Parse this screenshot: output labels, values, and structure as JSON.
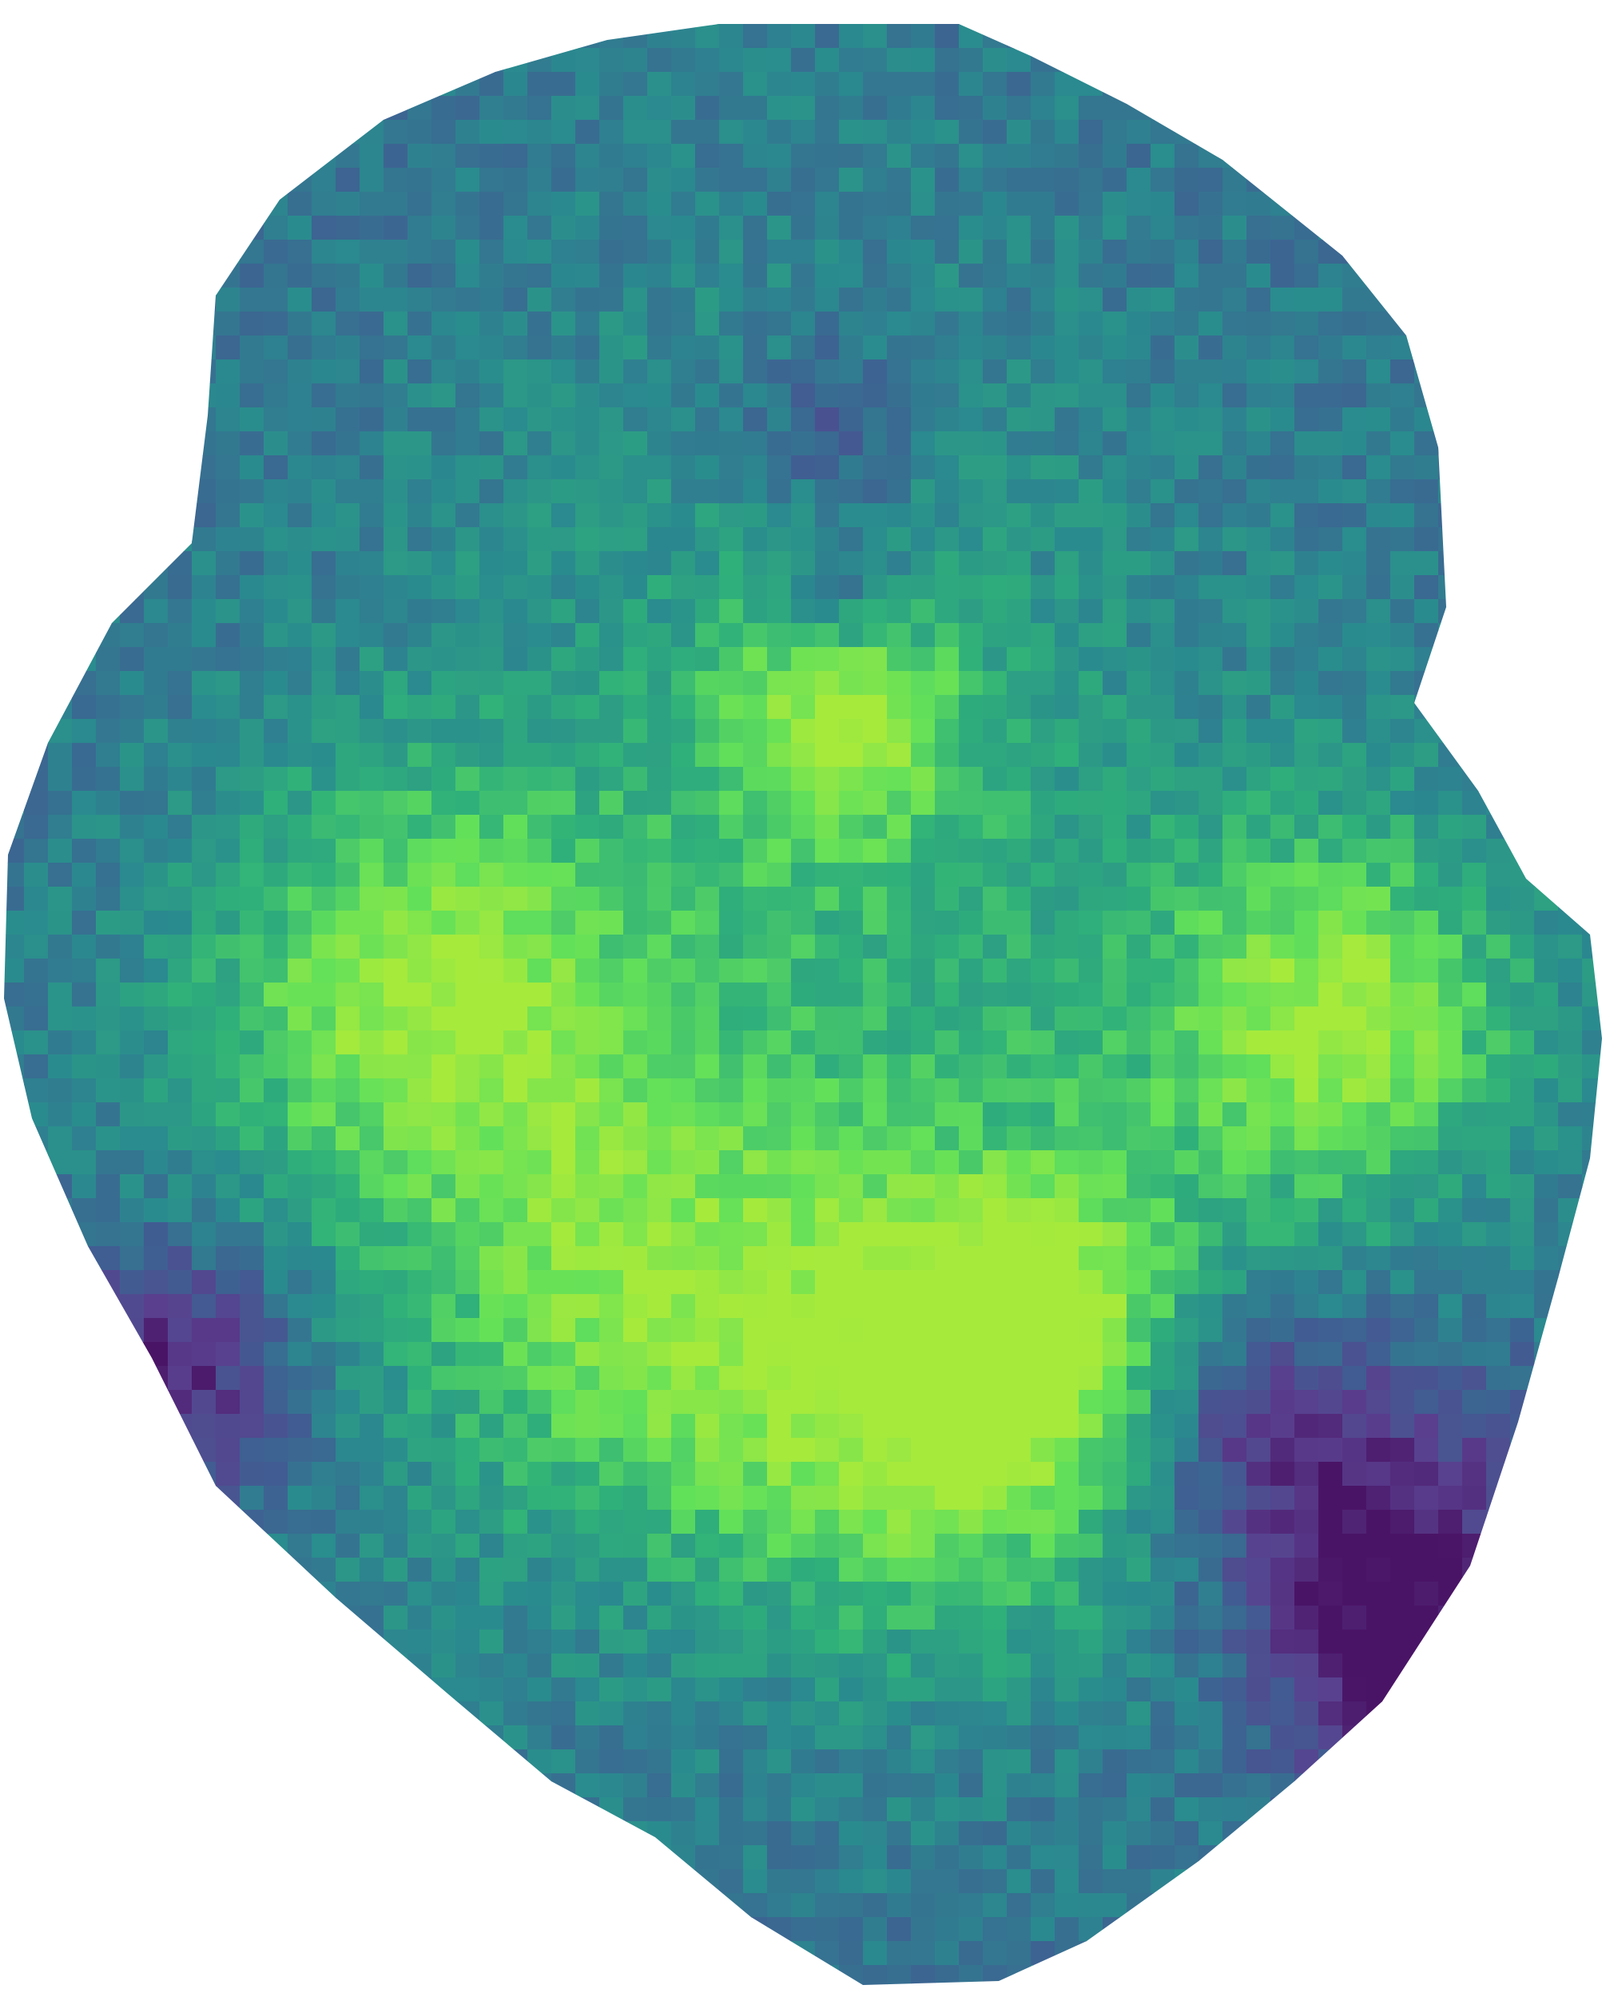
{
  "image": {
    "background": "#ffffff",
    "palette": {
      "deep_purple": "#4a1466",
      "violet": "#5a3f8f",
      "slate_blue": "#3f5f92",
      "teal": "#2a8a8f",
      "green": "#2fb07a",
      "bright_green": "#62e05a",
      "yellow_green": "#a6ea3c"
    }
  }
}
